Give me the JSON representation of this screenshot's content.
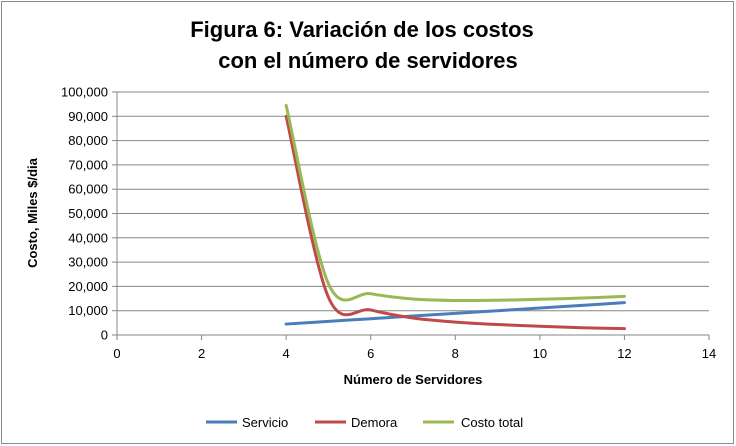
{
  "chart_data": {
    "type": "line",
    "title_lines": [
      "Figura 6: Variación de los costos",
      "con el número de servidores"
    ],
    "xlabel": "Número de Servidores",
    "ylabel": "Costo, Miles $/dia",
    "xlim": [
      0,
      14
    ],
    "ylim": [
      0,
      100000
    ],
    "x_ticks": [
      "0",
      "2",
      "4",
      "6",
      "8",
      "10",
      "12",
      "14"
    ],
    "y_ticks": [
      "0",
      "10,000",
      "20,000",
      "30,000",
      "40,000",
      "50,000",
      "60,000",
      "70,000",
      "80,000",
      "90,000",
      "100,000"
    ],
    "grid": "horizontal",
    "legend_position": "bottom",
    "x": [
      4,
      5,
      6,
      7,
      8,
      9,
      10,
      11,
      12
    ],
    "series": [
      {
        "name": "Servicio",
        "color": "#4a7ebb",
        "values": [
          4500,
          5600,
          6700,
          7800,
          8900,
          10000,
          11100,
          12200,
          13300
        ]
      },
      {
        "name": "Demora",
        "color": "#be4b48",
        "values": [
          90000,
          15500,
          10300,
          7000,
          5300,
          4300,
          3600,
          3000,
          2600
        ]
      },
      {
        "name": "Costo total",
        "color": "#98b954",
        "values": [
          94500,
          21100,
          17000,
          14800,
          14200,
          14300,
          14700,
          15200,
          15900
        ]
      }
    ]
  }
}
